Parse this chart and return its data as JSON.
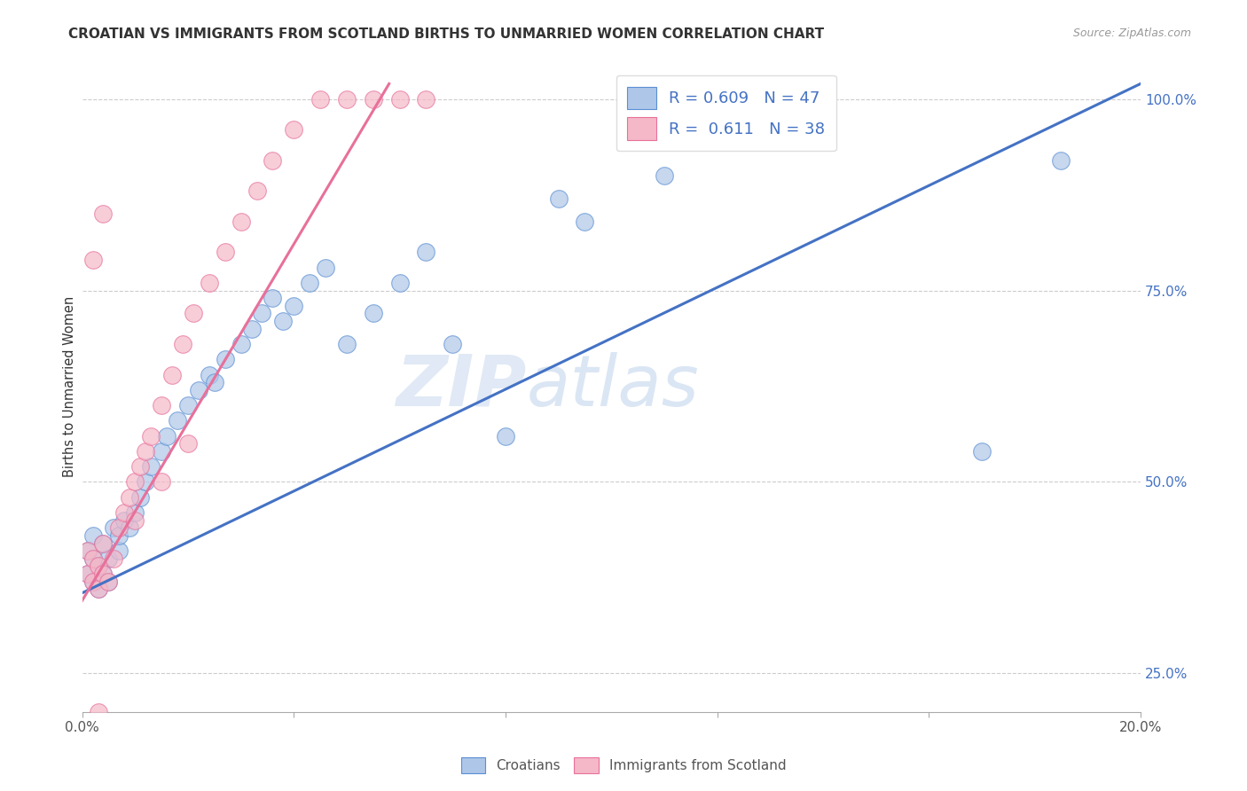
{
  "title": "CROATIAN VS IMMIGRANTS FROM SCOTLAND BIRTHS TO UNMARRIED WOMEN CORRELATION CHART",
  "source": "Source: ZipAtlas.com",
  "ylabel": "Births to Unmarried Women",
  "x_min": 0.0,
  "x_max": 0.2,
  "y_min": 0.2,
  "y_max": 1.05,
  "blue_R": 0.609,
  "blue_N": 47,
  "pink_R": 0.611,
  "pink_N": 38,
  "blue_color": "#aec6e8",
  "pink_color": "#f5b8c8",
  "blue_edge_color": "#5b8fd4",
  "pink_edge_color": "#e8709a",
  "blue_line_color": "#4472c4",
  "pink_line_color": "#e8709a",
  "legend_label_blue": "Croatians",
  "legend_label_pink": "Immigrants from Scotland",
  "watermark_zip": "ZIP",
  "watermark_atlas": "atlas",
  "blue_line_x0": 0.0,
  "blue_line_y0": 0.355,
  "blue_line_x1": 0.2,
  "blue_line_y1": 1.02,
  "pink_line_x0": 0.0,
  "pink_line_y0": 0.345,
  "pink_line_x1": 0.058,
  "pink_line_y1": 1.02,
  "blue_x": [
    0.001,
    0.001,
    0.002,
    0.002,
    0.002,
    0.003,
    0.003,
    0.004,
    0.004,
    0.005,
    0.005,
    0.006,
    0.007,
    0.007,
    0.008,
    0.009,
    0.01,
    0.011,
    0.012,
    0.013,
    0.015,
    0.016,
    0.018,
    0.02,
    0.022,
    0.024,
    0.025,
    0.027,
    0.03,
    0.032,
    0.034,
    0.036,
    0.038,
    0.04,
    0.043,
    0.046,
    0.05,
    0.055,
    0.06,
    0.065,
    0.07,
    0.08,
    0.09,
    0.095,
    0.11,
    0.17,
    0.185
  ],
  "blue_y": [
    0.38,
    0.41,
    0.37,
    0.4,
    0.43,
    0.36,
    0.39,
    0.38,
    0.42,
    0.37,
    0.4,
    0.44,
    0.41,
    0.43,
    0.45,
    0.44,
    0.46,
    0.48,
    0.5,
    0.52,
    0.54,
    0.56,
    0.58,
    0.6,
    0.62,
    0.64,
    0.63,
    0.66,
    0.68,
    0.7,
    0.72,
    0.74,
    0.71,
    0.73,
    0.76,
    0.78,
    0.68,
    0.72,
    0.76,
    0.8,
    0.68,
    0.56,
    0.87,
    0.84,
    0.9,
    0.54,
    0.92
  ],
  "pink_x": [
    0.001,
    0.001,
    0.002,
    0.002,
    0.003,
    0.003,
    0.004,
    0.004,
    0.005,
    0.006,
    0.007,
    0.008,
    0.009,
    0.01,
    0.011,
    0.012,
    0.013,
    0.015,
    0.017,
    0.019,
    0.021,
    0.024,
    0.027,
    0.03,
    0.033,
    0.036,
    0.04,
    0.045,
    0.05,
    0.055,
    0.06,
    0.065,
    0.01,
    0.015,
    0.02,
    0.004,
    0.003,
    0.002
  ],
  "pink_y": [
    0.38,
    0.41,
    0.37,
    0.4,
    0.36,
    0.39,
    0.38,
    0.42,
    0.37,
    0.4,
    0.44,
    0.46,
    0.48,
    0.5,
    0.52,
    0.54,
    0.56,
    0.6,
    0.64,
    0.68,
    0.72,
    0.76,
    0.8,
    0.84,
    0.88,
    0.92,
    0.96,
    1.0,
    1.0,
    1.0,
    1.0,
    1.0,
    0.45,
    0.5,
    0.55,
    0.85,
    0.2,
    0.79
  ]
}
